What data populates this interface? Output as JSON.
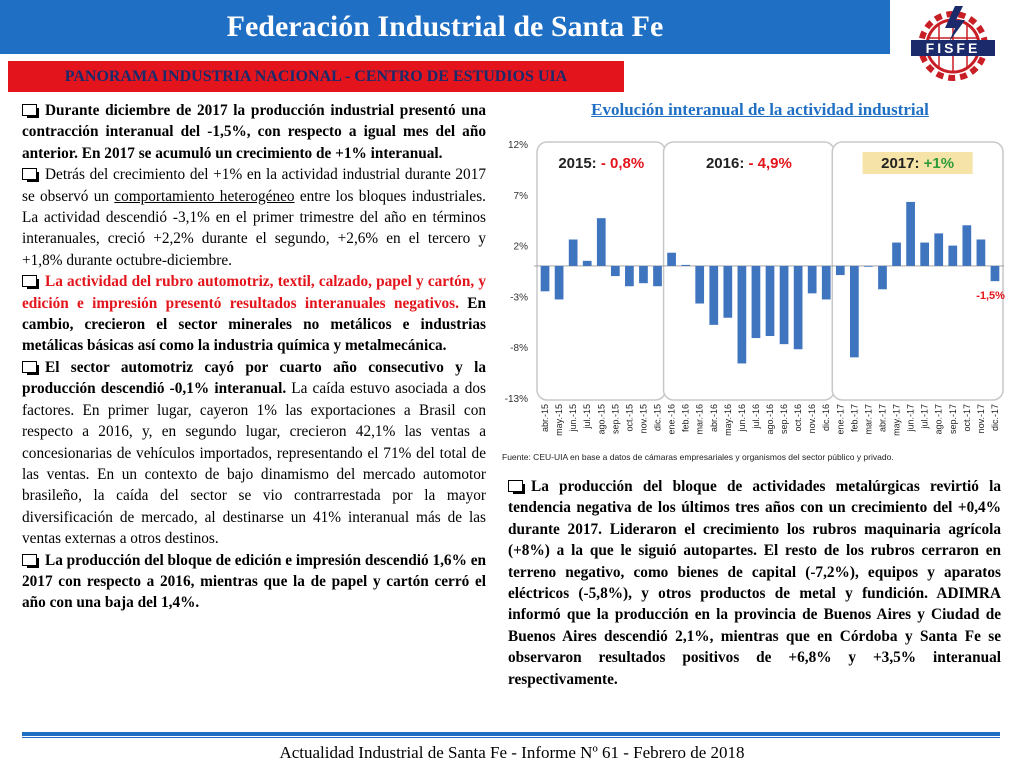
{
  "header": {
    "title": "Federación Industrial de Santa Fe"
  },
  "logo": {
    "text": "FISFE",
    "icon": "fisfe-gear-logo"
  },
  "subheader": {
    "text": "PANORAMA INDUSTRIA NACIONAL - CENTRO DE ESTUDIOS UIA"
  },
  "left": {
    "p1": {
      "bold": "Durante diciembre de 2017 la producción industrial presentó una contracción interanual del -1,5%, con respecto a igual mes del año anterior. En 2017 se acumuló un crecimiento de +1% interanual."
    },
    "p2": {
      "a": "Detrás del crecimiento del +1% en la actividad industrial durante 2017 se observó un ",
      "u": "comportamiento heterogéneo",
      "b": " entre los bloques industriales. La actividad descendió -3,1% en el primer trimestre del año en términos interanuales, creció +2,2% durante el segundo, +2,6% en el tercero y +1,8% durante octubre-diciembre."
    },
    "p3": {
      "red": "La actividad del rubro automotriz, textil, calzado, papel y cartón, y edición e impresión presentó resultados interanuales negativos.",
      "bold": " En cambio, crecieron el sector minerales no metálicos e industrias metálicas básicas así como la industria química y metalmecánica."
    },
    "p4": {
      "bold": "El sector automotriz cayó por cuarto año consecutivo y la producción descendió -0,1% interanual.",
      "rest": " La caída estuvo asociada a dos factores. En primer lugar, cayeron 1% las exportaciones a Brasil con respecto a 2016, y, en segundo lugar, crecieron 42,1% las ventas a concesionarias de vehículos importados, representando el 71% del total de las ventas. En un contexto de bajo dinamismo del mercado automotor brasileño, la caída del sector se vio contrarrestada por la mayor diversificación de mercado, al destinarse un 41% interanual más de las ventas externas a otros destinos."
    },
    "p5": {
      "bold": "La producción del bloque de edición e impresión descendió 1,6% en 2017 con respecto a 2016, mientras que la de papel y cartón cerró el año con una baja del 1,4%."
    }
  },
  "right": {
    "p1": "La producción del bloque de actividades metalúrgicas revirtió la tendencia negativa de los últimos tres años con un crecimiento del +0,4% durante 2017. Lideraron el crecimiento los rubros maquinaria agrícola (+8%) a la que le siguió autopartes. El resto de los rubros cerraron en terreno negativo, como bienes de capital (-7,2%), equipos y aparatos eléctricos (-5,8%), y otros productos de metal y fundición. ADIMRA informó que la producción en la provincia de Buenos Aires y Ciudad de Buenos Aires descendió 2,1%, mientras que en Córdoba y Santa Fe se observaron resultados positivos de +6,8% y +3,5% interanual respectivamente."
  },
  "chart_data": {
    "type": "bar",
    "title": "Evolución interanual de la actividad industrial",
    "ylim": [
      -13,
      12
    ],
    "yticks": [
      "12%",
      "7%",
      "2%",
      "-3%",
      "-8%",
      "-13%"
    ],
    "ytick_values": [
      12,
      7,
      2,
      -3,
      -8,
      -13
    ],
    "categories": [
      "abr.-15",
      "may.-15",
      "jun.-15",
      "jul.-15",
      "ago.-15",
      "sep.-15",
      "oct.-15",
      "nov.-15",
      "dic.-15",
      "ene.-16",
      "feb.-16",
      "mar.-16",
      "abr.-16",
      "may.-16",
      "jun.-16",
      "jul.-16",
      "ago.-16",
      "sep.-16",
      "oct.-16",
      "nov.-16",
      "dic.-16",
      "ene.-17",
      "feb.-17",
      "mar.-17",
      "abr.-17",
      "may.-17",
      "jun.-17",
      "jul.-17",
      "ago.-17",
      "sep.-17",
      "oct.-17",
      "nov.-17",
      "dic.-17"
    ],
    "values": [
      -2.5,
      -3.3,
      2.6,
      0.5,
      4.7,
      -1.0,
      -2.0,
      -1.7,
      -2.0,
      1.3,
      0.1,
      -3.7,
      -5.8,
      -5.1,
      -9.6,
      -7.1,
      -6.9,
      -7.7,
      -8.2,
      -2.7,
      -3.3,
      -0.9,
      -9.0,
      0.0,
      -2.3,
      2.3,
      6.3,
      2.3,
      3.2,
      2.0,
      4.0,
      2.6,
      -1.5
    ],
    "groups": [
      {
        "label": "2015:",
        "value_label": "- 0,8%",
        "start": 0,
        "end": 8
      },
      {
        "label": "2016:",
        "value_label": "- 4,9%",
        "start": 9,
        "end": 20
      },
      {
        "label": "2017:",
        "value_label": "+1%",
        "start": 21,
        "end": 32
      }
    ],
    "annotation": "-1,5%",
    "source": "Fuente: CEU-UIA en base a datos de cámaras empresariales y organismos del sector público y privado.",
    "colors": {
      "bar": "#3f74bf",
      "label_red": "#e3141b",
      "label_green": "#2e9b3a",
      "badge": "#f6e3a8"
    }
  },
  "footer": {
    "text": "Actualidad Industrial de Santa Fe - Informe Nº 61 - Febrero de 2018"
  }
}
